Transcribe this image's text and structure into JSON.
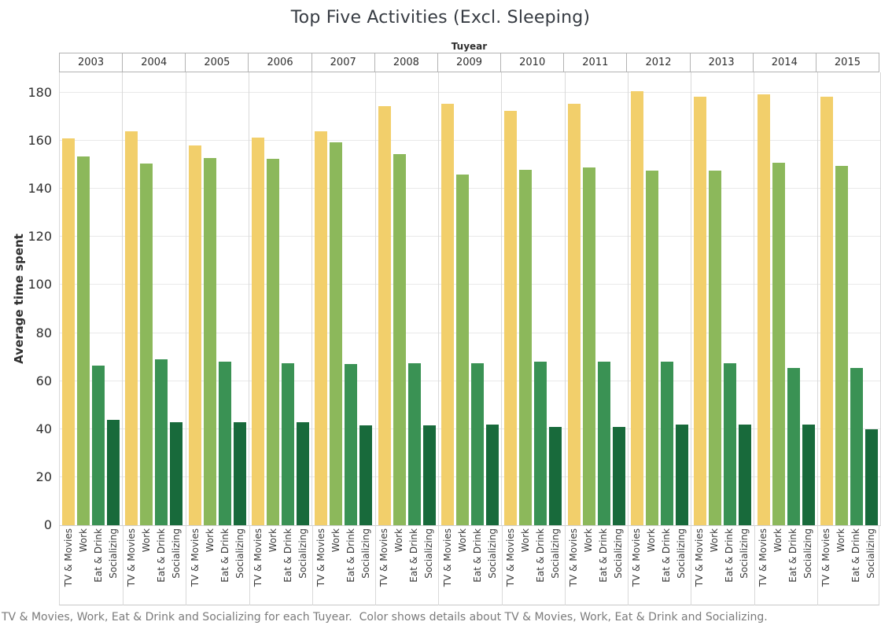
{
  "title": "Top Five Activities (Excl. Sleeping)",
  "column_header": "Tuyear",
  "y_axis": {
    "label": "Average time spent",
    "ticks": [
      0,
      20,
      40,
      60,
      80,
      100,
      120,
      140,
      160,
      180
    ]
  },
  "caption": "TV & Movies, Work, Eat & Drink and Socializing for each Tuyear.  Color shows details about TV & Movies, Work, Eat & Drink and Socializing.",
  "colors": {
    "tv_movies": "#F2CF6B",
    "work": "#8CB85B",
    "eat_drink": "#3A9254",
    "socializing": "#186A3B"
  },
  "chart_data": {
    "type": "bar",
    "title": "Top Five Activities (Excl. Sleeping)",
    "xlabel": "Tuyear",
    "ylabel": "Average time spent",
    "ylim": [
      0,
      188
    ],
    "grid": true,
    "legend_position": "none",
    "categories": [
      "2003",
      "2004",
      "2005",
      "2006",
      "2007",
      "2008",
      "2009",
      "2010",
      "2011",
      "2012",
      "2013",
      "2014",
      "2015"
    ],
    "series": [
      {
        "name": "TV & Movies",
        "color": "#F2CF6B",
        "values": [
          161,
          164,
          158,
          161.5,
          164,
          174.5,
          175.5,
          172.5,
          175.5,
          180.5,
          178.5,
          179.5,
          178.5
        ]
      },
      {
        "name": "Work",
        "color": "#8CB85B",
        "values": [
          153.5,
          150.5,
          153,
          152.5,
          159.5,
          154.5,
          146,
          148,
          149,
          147.5,
          147.5,
          151,
          149.5
        ]
      },
      {
        "name": "Eat & Drink",
        "color": "#3A9254",
        "values": [
          66.5,
          69,
          68,
          67.5,
          67,
          67.5,
          67.5,
          68,
          68,
          68,
          67.5,
          65.5,
          65.5
        ]
      },
      {
        "name": "Socializing",
        "color": "#186A3B",
        "values": [
          44,
          43,
          43,
          43,
          41.5,
          41.5,
          42,
          41,
          41,
          42,
          42,
          42,
          40
        ]
      }
    ]
  }
}
